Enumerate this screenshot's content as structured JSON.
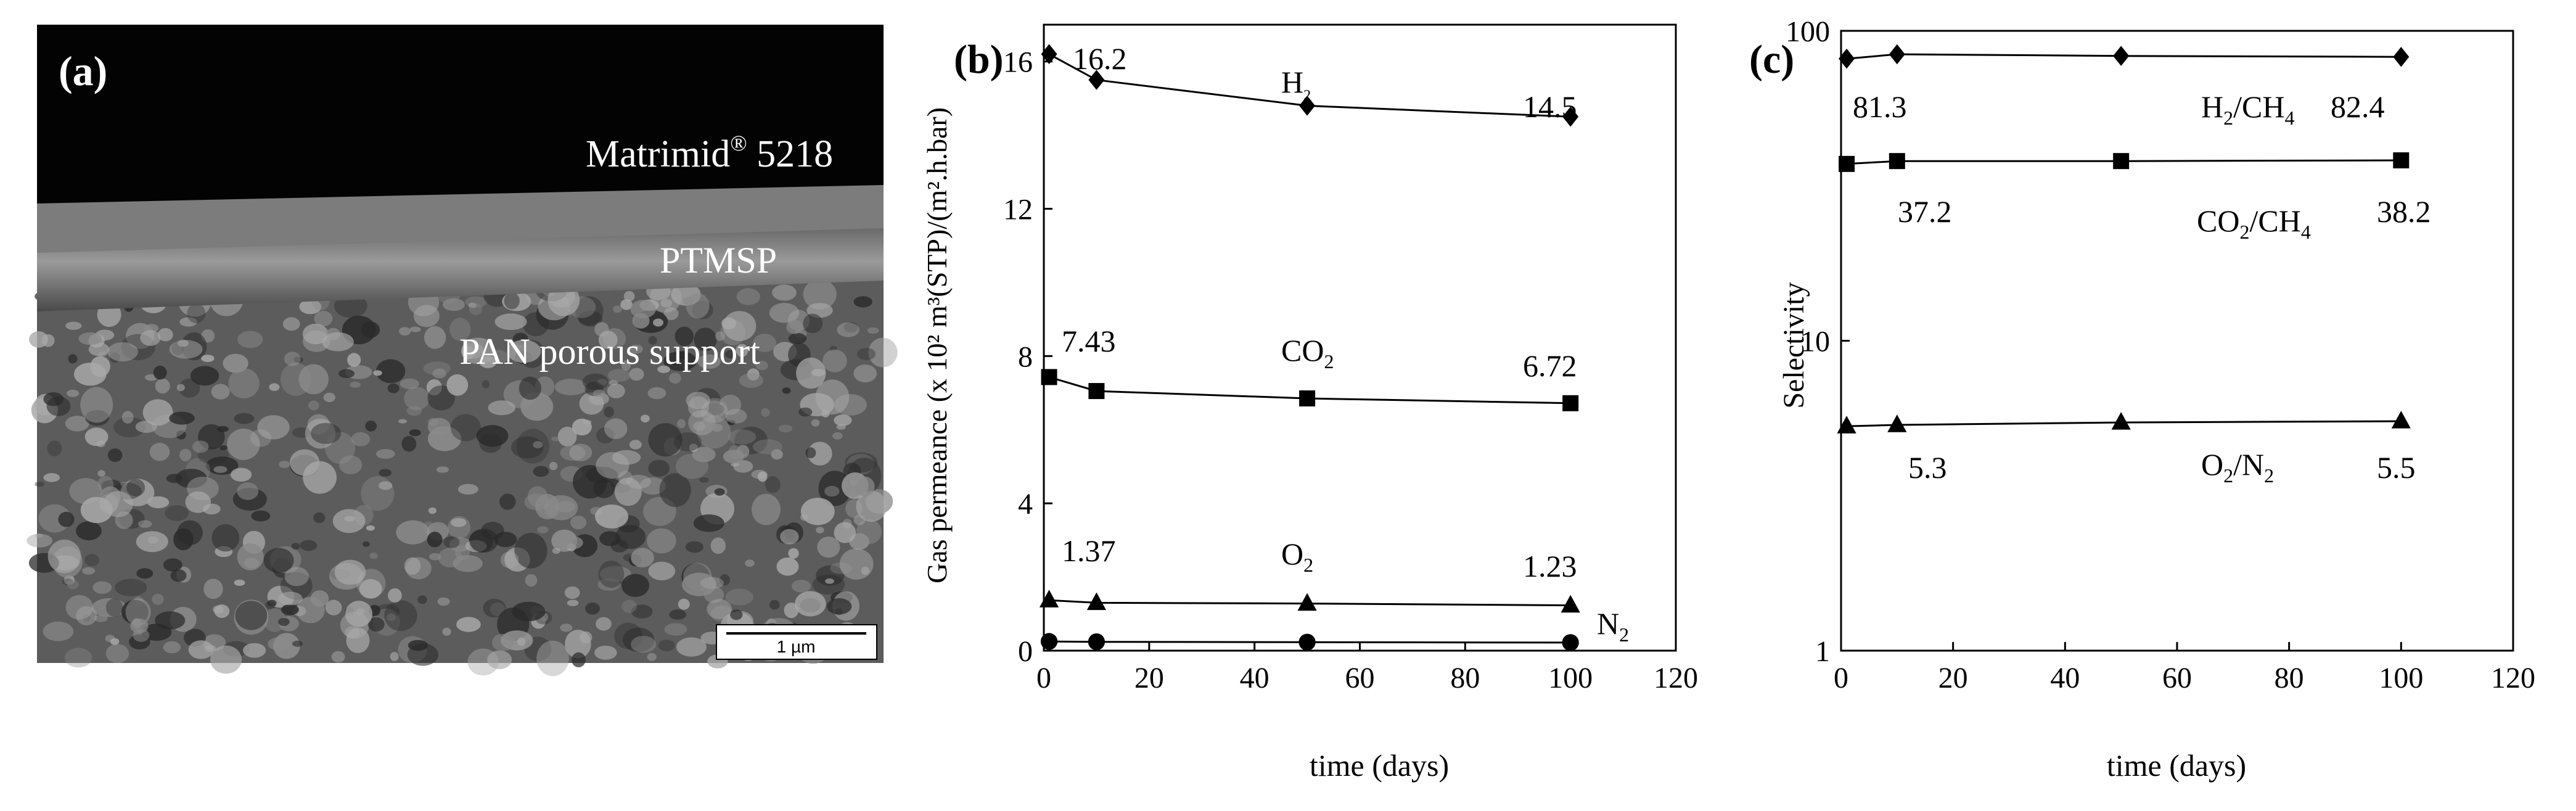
{
  "panel_a": {
    "label": "(a)",
    "layer_top": "Matrimid",
    "layer_top_sup": "®",
    "layer_top_suffix": " 5218",
    "layer_mid": "PTMSP",
    "layer_bottom": "PAN porous support",
    "scale_bar": "1 µm"
  },
  "chart_data": [
    {
      "id": "b",
      "type": "line",
      "panel_label": "(b)",
      "xlabel": "time (days)",
      "ylabel": "Gas permeance (x 10² m³(STP)/(m².h.bar)",
      "xlim": [
        0,
        120
      ],
      "ylim": [
        0,
        17
      ],
      "x_ticks": [
        0,
        20,
        40,
        60,
        80,
        100,
        120
      ],
      "y_ticks": [
        0,
        4,
        8,
        12,
        16
      ],
      "x": [
        1,
        10,
        50,
        100
      ],
      "series": [
        {
          "name": "H2",
          "label_main": "H",
          "label_sub": "2",
          "marker": "diamond",
          "values": [
            16.2,
            15.5,
            14.8,
            14.5
          ]
        },
        {
          "name": "CO2",
          "label_main": "CO",
          "label_sub": "2",
          "marker": "square",
          "values": [
            7.43,
            7.05,
            6.85,
            6.72
          ]
        },
        {
          "name": "O2",
          "label_main": "O",
          "label_sub": "2",
          "marker": "triangle",
          "values": [
            1.37,
            1.3,
            1.28,
            1.23
          ]
        },
        {
          "name": "N2",
          "label_main": "N",
          "label_sub": "2",
          "marker": "circle",
          "values": [
            0.25,
            0.24,
            0.23,
            0.22
          ]
        }
      ],
      "annotations": [
        "16.2",
        "14.5",
        "7.43",
        "6.72",
        "1.37",
        "1.23"
      ]
    },
    {
      "id": "c",
      "type": "line",
      "panel_label": "(c)",
      "xlabel": "time (days)",
      "ylabel": "Selectivity",
      "yscale": "log",
      "xlim": [
        0,
        120
      ],
      "ylim": [
        1,
        100
      ],
      "x_ticks": [
        0,
        20,
        40,
        60,
        80,
        100,
        120
      ],
      "y_ticks": [
        1,
        10,
        100
      ],
      "x": [
        1,
        10,
        50,
        100
      ],
      "series": [
        {
          "name": "H2/CH4",
          "p1": "H",
          "s1": "2",
          "p2": "/CH",
          "s2": "4",
          "marker": "diamond",
          "values": [
            81.3,
            84,
            83,
            82.4
          ]
        },
        {
          "name": "CO2/CH4",
          "p1": "CO",
          "s1": "2",
          "p2": "/CH",
          "s2": "4",
          "marker": "square",
          "values": [
            37.2,
            38,
            38,
            38.2
          ]
        },
        {
          "name": "O2/N2",
          "p1": "O",
          "s1": "2",
          "p2": "/N",
          "s2": "2",
          "marker": "triangle",
          "values": [
            5.3,
            5.35,
            5.45,
            5.5
          ]
        }
      ],
      "annotations": [
        "81.3",
        "82.4",
        "37.2",
        "38.2",
        "5.3",
        "5.5"
      ]
    }
  ]
}
